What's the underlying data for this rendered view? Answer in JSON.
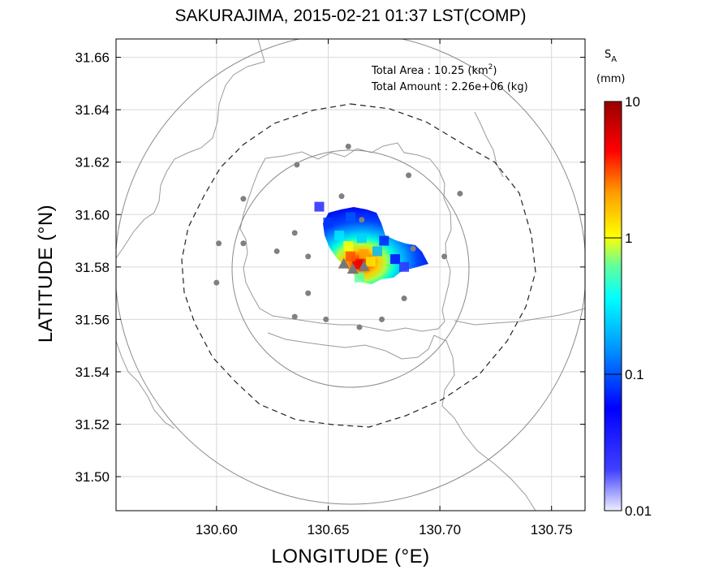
{
  "title": "SAKURAJIMA, 2015-02-21 01:37 LST(COMP)",
  "xlabel": "LONGITUDE (°E)",
  "ylabel": "LATITUDE (°N)",
  "annotation": {
    "area_label": "Total Area   : 10.25 (km",
    "area_sup": "2",
    "area_close": ")",
    "amount_label": "Total Amount : 2.26e+06 (kg)"
  },
  "colorbar": {
    "title_main": "S",
    "title_sub": "A",
    "unit": "(mm)",
    "ticks": [
      {
        "value": 10,
        "label": "10"
      },
      {
        "value": 1,
        "label": "1"
      },
      {
        "value": 0.1,
        "label": "0.1"
      },
      {
        "value": 0.01,
        "label": "0.01"
      }
    ],
    "scale": "log",
    "range": [
      0.01,
      10
    ]
  },
  "chart_data": {
    "type": "heatmap",
    "xlim": [
      130.555,
      130.765
    ],
    "ylim": [
      31.487,
      31.667
    ],
    "xticks": [
      "130.60",
      "130.65",
      "130.70",
      "130.75"
    ],
    "yticks": [
      "31.50",
      "31.52",
      "31.54",
      "31.56",
      "31.58",
      "31.60",
      "31.62",
      "31.64",
      "31.66"
    ],
    "grid": true,
    "summit": {
      "lon": 130.661,
      "lat": 31.58
    },
    "vents": [
      {
        "lon": 130.657,
        "lat": 31.581
      },
      {
        "lon": 130.666,
        "lat": 31.58
      },
      {
        "lon": 130.661,
        "lat": 31.579
      }
    ],
    "stations": [
      {
        "lon": 130.659,
        "lat": 31.626
      },
      {
        "lon": 130.636,
        "lat": 31.619
      },
      {
        "lon": 130.686,
        "lat": 31.615
      },
      {
        "lon": 130.612,
        "lat": 31.606
      },
      {
        "lon": 130.656,
        "lat": 31.607
      },
      {
        "lon": 130.709,
        "lat": 31.608
      },
      {
        "lon": 130.601,
        "lat": 31.589
      },
      {
        "lon": 130.612,
        "lat": 31.589
      },
      {
        "lon": 130.635,
        "lat": 31.593
      },
      {
        "lon": 130.665,
        "lat": 31.598
      },
      {
        "lon": 130.627,
        "lat": 31.586
      },
      {
        "lon": 130.641,
        "lat": 31.584
      },
      {
        "lon": 130.688,
        "lat": 31.587
      },
      {
        "lon": 130.702,
        "lat": 31.584
      },
      {
        "lon": 130.6,
        "lat": 31.574
      },
      {
        "lon": 130.641,
        "lat": 31.57
      },
      {
        "lon": 130.684,
        "lat": 31.568
      },
      {
        "lon": 130.635,
        "lat": 31.561
      },
      {
        "lon": 130.649,
        "lat": 31.56
      },
      {
        "lon": 130.664,
        "lat": 31.557
      },
      {
        "lon": 130.674,
        "lat": 31.56
      }
    ],
    "range_rings": [
      {
        "radius_km": 5,
        "style": "solid"
      },
      {
        "radius_km": 10,
        "style": "solid"
      },
      {
        "radius_km": 7.5,
        "style": "dashed"
      }
    ],
    "ash_plume": {
      "cells": [
        {
          "lon": 130.663,
          "lat": 31.581,
          "sa_mm": 5
        },
        {
          "lon": 130.66,
          "lat": 31.584,
          "sa_mm": 3
        },
        {
          "lon": 130.666,
          "lat": 31.585,
          "sa_mm": 2
        },
        {
          "lon": 130.659,
          "lat": 31.588,
          "sa_mm": 1
        },
        {
          "lon": 130.669,
          "lat": 31.582,
          "sa_mm": 1.2
        },
        {
          "lon": 130.664,
          "lat": 31.576,
          "sa_mm": 0.6
        },
        {
          "lon": 130.655,
          "lat": 31.592,
          "sa_mm": 0.3
        },
        {
          "lon": 130.665,
          "lat": 31.591,
          "sa_mm": 0.25
        },
        {
          "lon": 130.672,
          "lat": 31.586,
          "sa_mm": 0.2
        },
        {
          "lon": 130.65,
          "lat": 31.597,
          "sa_mm": 0.08
        },
        {
          "lon": 130.66,
          "lat": 31.599,
          "sa_mm": 0.1
        },
        {
          "lon": 130.675,
          "lat": 31.59,
          "sa_mm": 0.07
        },
        {
          "lon": 130.68,
          "lat": 31.583,
          "sa_mm": 0.05
        },
        {
          "lon": 130.646,
          "lat": 31.603,
          "sa_mm": 0.03
        },
        {
          "lon": 130.684,
          "lat": 31.58,
          "sa_mm": 0.025
        }
      ]
    }
  }
}
